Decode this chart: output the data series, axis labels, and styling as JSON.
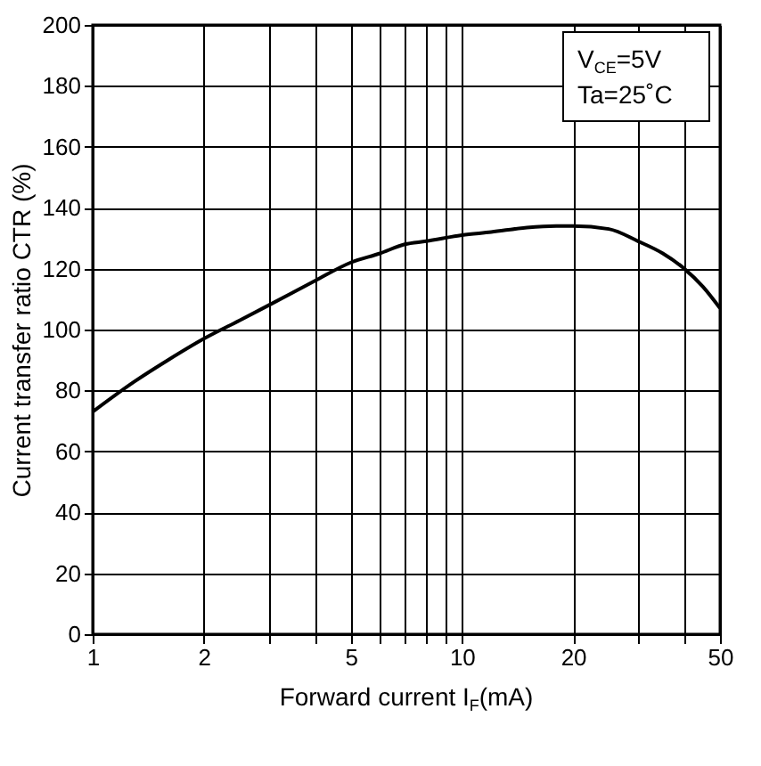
{
  "chart_data": {
    "type": "line",
    "xlabel": "Forward current I$_{F}$(mA)",
    "ylabel": "Current transfer ratio CTR (%)",
    "annotations": [
      "V$_{CE}$=5V",
      "Ta=25˚C"
    ],
    "x": [
      1,
      1.3,
      1.6,
      2,
      2.5,
      3,
      4,
      5,
      6,
      7,
      8,
      10,
      12,
      15,
      18,
      20,
      25,
      30,
      35,
      40,
      45,
      50
    ],
    "series": [
      {
        "color": "#000000",
        "values": [
          73,
          83,
          90,
          97,
          103,
          108,
          116,
          122,
          125,
          128,
          129,
          131,
          132,
          133.5,
          134,
          134,
          133,
          129,
          125,
          120,
          114,
          107
        ]
      }
    ],
    "log": "x",
    "xlim": [
      1,
      50
    ],
    "ylim": [
      0,
      200
    ],
    "xticks": [
      1,
      2,
      {
        "value": 3,
        "label": null
      },
      {
        "value": 4,
        "label": null
      },
      5,
      {
        "value": 6,
        "label": null
      },
      {
        "value": 7,
        "label": null
      },
      {
        "value": 8,
        "label": null
      },
      {
        "value": 9,
        "label": null
      },
      10,
      20,
      {
        "value": 30,
        "label": null
      },
      {
        "value": 40,
        "label": null
      },
      50
    ],
    "yticks": [
      0,
      20,
      40,
      60,
      80,
      100,
      120,
      140,
      160,
      180,
      200
    ],
    "grid": true,
    "marker": "none",
    "line_style": "solid"
  }
}
